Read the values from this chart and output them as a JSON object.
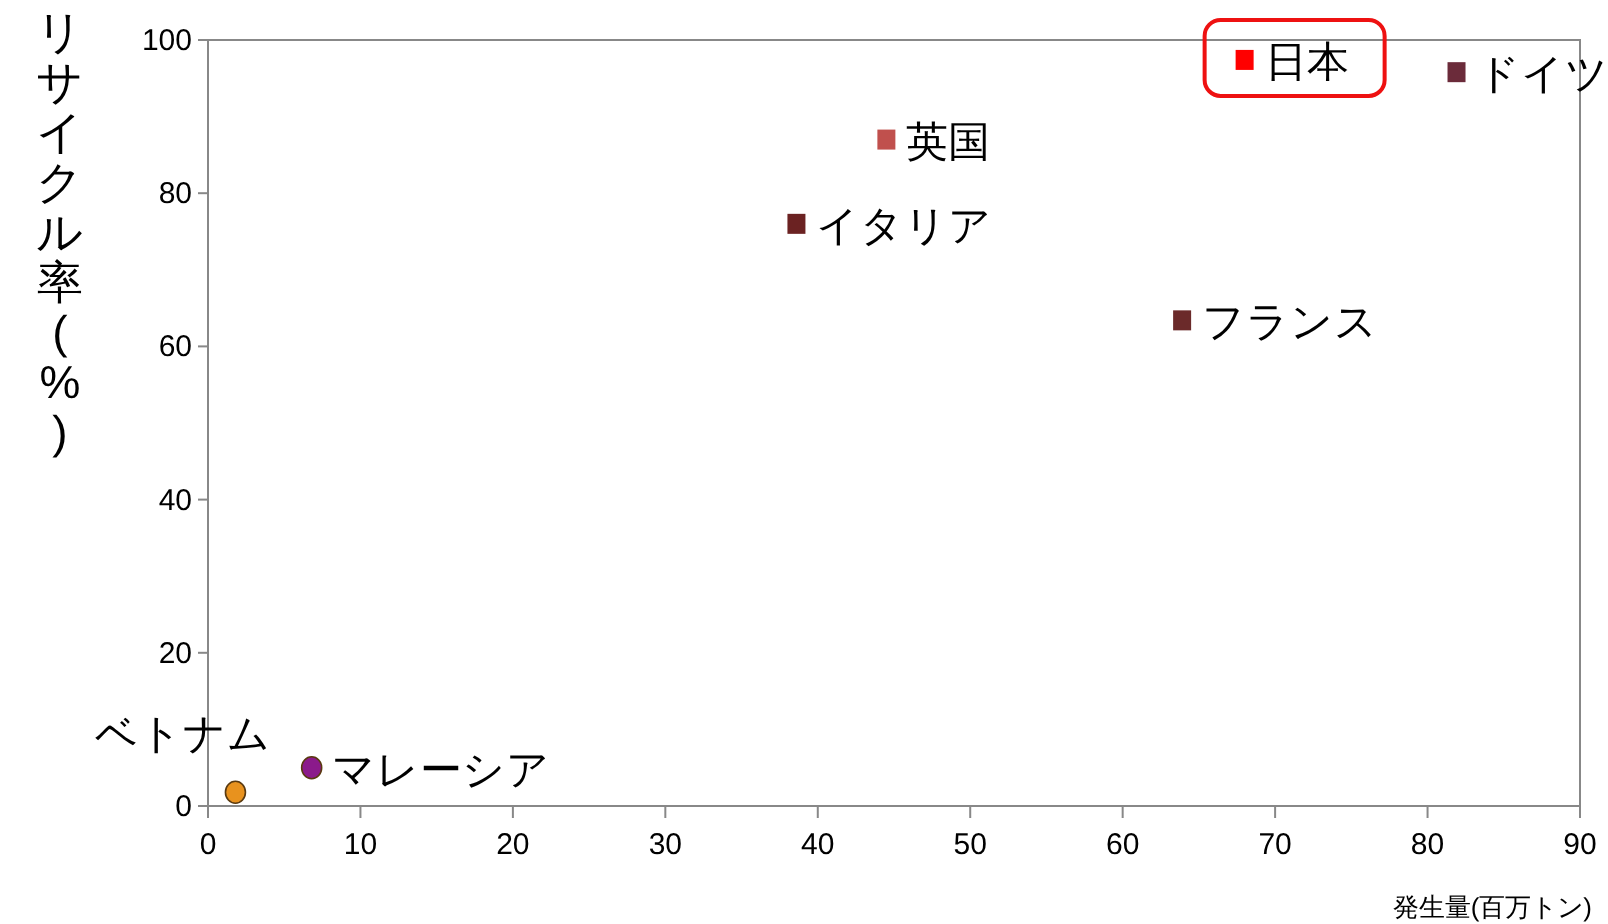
{
  "chart_data": {
    "type": "scatter",
    "ylabel": "リサイクル率(%)",
    "xlabel": "発生量(百万トン)",
    "xlim": [
      0,
      90
    ],
    "xticks": [
      0,
      10,
      20,
      30,
      40,
      50,
      60,
      70,
      80,
      90
    ],
    "ylim": [
      0,
      100
    ],
    "yticks": [
      0,
      20,
      40,
      60,
      80,
      100
    ],
    "grid": false,
    "series": [
      {
        "name": "日本",
        "color": "#ff0000",
        "marker": "square",
        "x": [
          68
        ],
        "values": [
          97.4
        ]
      },
      {
        "name": "ドイツ",
        "color": "#6b2b3a",
        "marker": "square",
        "x": [
          81.9
        ],
        "values": [
          95.8
        ]
      },
      {
        "name": "英国",
        "color": "#c0504d",
        "marker": "square",
        "x": [
          44.5
        ],
        "values": [
          87
        ]
      },
      {
        "name": "イタリア",
        "color": "#6b2222",
        "marker": "square",
        "x": [
          38.6
        ],
        "values": [
          76
        ]
      },
      {
        "name": "フランス",
        "color": "#6b2a2a",
        "marker": "square",
        "x": [
          63.9
        ],
        "values": [
          63.4
        ]
      },
      {
        "name": "ベトナム",
        "color": "#e8921e",
        "marker": "circle",
        "x": [
          1.8
        ],
        "values": [
          1.8
        ]
      },
      {
        "name": "マレーシア",
        "color": "#8b1a8b",
        "marker": "circle",
        "x": [
          6.8
        ],
        "values": [
          5
        ]
      }
    ]
  }
}
